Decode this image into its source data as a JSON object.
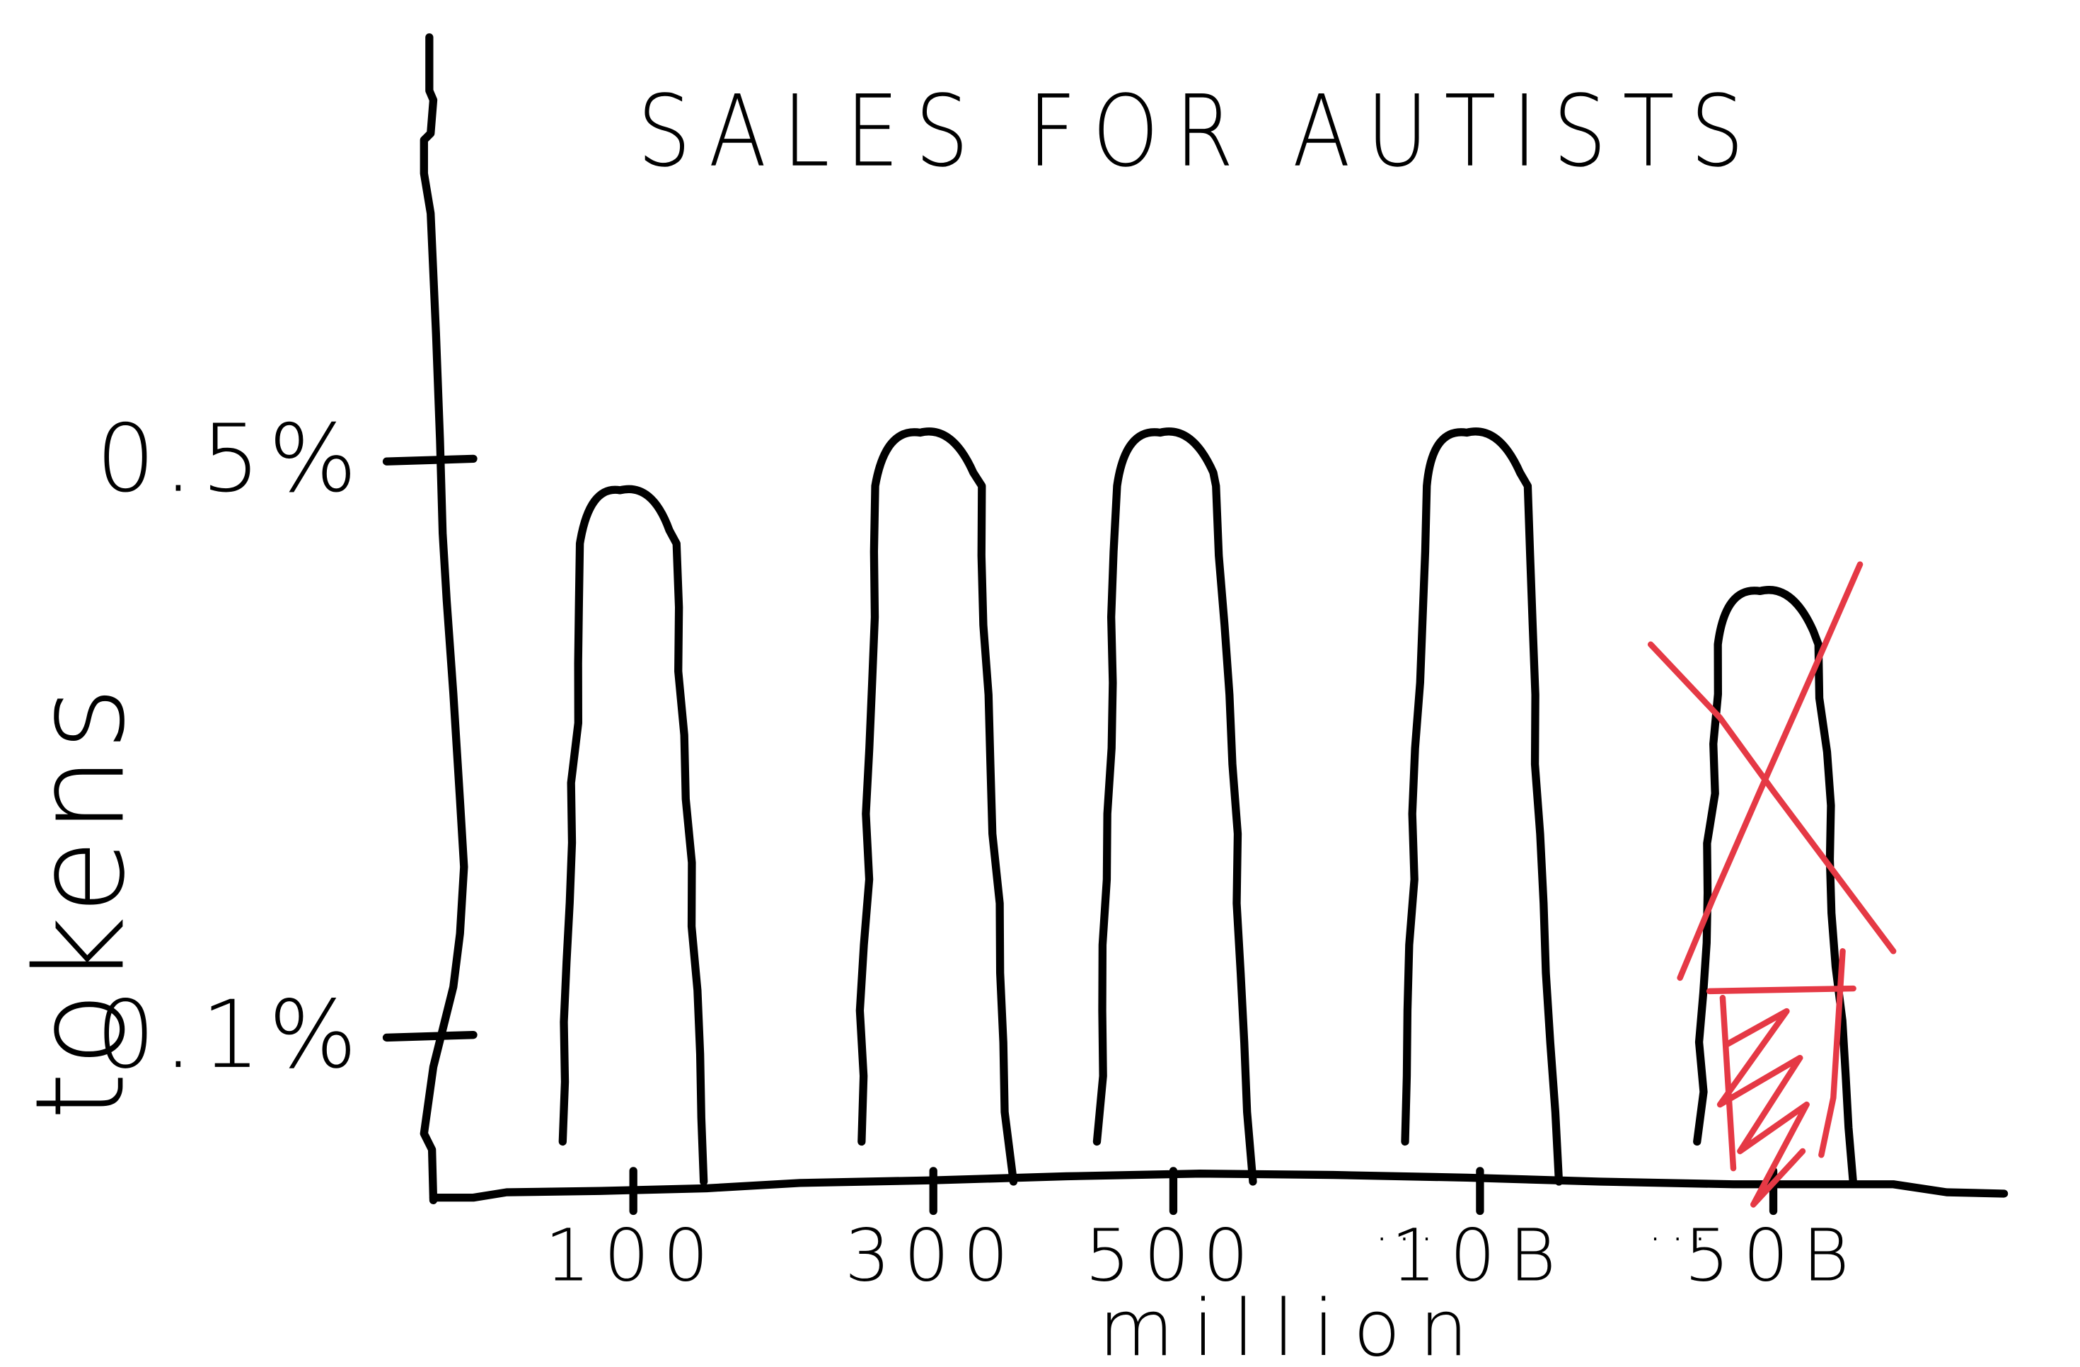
{
  "chart_data": {
    "type": "bar",
    "title": "SALES FOR AUTISTS",
    "xlabel": "million",
    "ylabel": "tokens",
    "categories": [
      "100",
      "300",
      "500",
      "10B",
      "50B"
    ],
    "ellipsis_1": "...",
    "ellipsis_2": "...",
    "values": [
      0.48,
      0.52,
      0.52,
      0.52,
      0.41
    ],
    "y_ticks": [
      {
        "value": 0.1,
        "label": "0.1%"
      },
      {
        "value": 0.5,
        "label": "0.5%"
      }
    ],
    "ylim": [
      0,
      0.6
    ],
    "crossed_out_category": "50B",
    "colors": {
      "ink": "#000000",
      "correction": "#e53945",
      "background": "#ffffff"
    }
  }
}
